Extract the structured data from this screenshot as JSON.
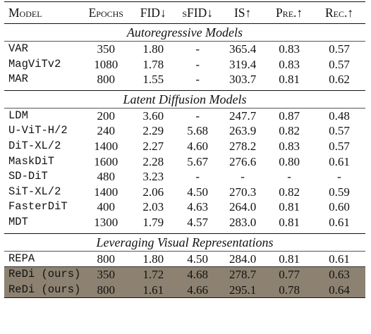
{
  "header": {
    "model": "Model",
    "epochs": "Epochs",
    "fid": "FID↓",
    "sfid": "sFID↓",
    "is": "IS↑",
    "pre": "Pre.↑",
    "rec": "Rec.↑"
  },
  "sections": [
    {
      "title": "Autoregressive Models",
      "rows": [
        {
          "model": "VAR",
          "epochs": "350",
          "fid": "1.80",
          "sfid": "-",
          "is": "365.4",
          "pre": "0.83",
          "rec": "0.57"
        },
        {
          "model": "MagViTv2",
          "epochs": "1080",
          "fid": "1.78",
          "sfid": "-",
          "is": "319.4",
          "pre": "0.83",
          "rec": "0.57"
        },
        {
          "model": "MAR",
          "epochs": "800",
          "fid": "1.55",
          "sfid": "-",
          "is": "303.7",
          "pre": "0.81",
          "rec": "0.62"
        }
      ]
    },
    {
      "title": "Latent Diffusion Models",
      "rows": [
        {
          "model": "LDM",
          "epochs": "200",
          "fid": "3.60",
          "sfid": "-",
          "is": "247.7",
          "pre": "0.87",
          "rec": "0.48"
        },
        {
          "model": "U-ViT-H/2",
          "epochs": "240",
          "fid": "2.29",
          "sfid": "5.68",
          "is": "263.9",
          "pre": "0.82",
          "rec": "0.57"
        },
        {
          "model": "DiT-XL/2",
          "epochs": "1400",
          "fid": "2.27",
          "sfid": "4.60",
          "is": "278.2",
          "pre": "0.83",
          "rec": "0.57"
        },
        {
          "model": "MaskDiT",
          "epochs": "1600",
          "fid": "2.28",
          "sfid": "5.67",
          "is": "276.6",
          "pre": "0.80",
          "rec": "0.61"
        },
        {
          "model": "SD-DiT",
          "epochs": "480",
          "fid": "3.23",
          "sfid": "-",
          "is": "-",
          "pre": "-",
          "rec": "-"
        },
        {
          "model": "SiT-XL/2",
          "epochs": "1400",
          "fid": "2.06",
          "sfid": "4.50",
          "is": "270.3",
          "pre": "0.82",
          "rec": "0.59"
        },
        {
          "model": "FasterDiT",
          "epochs": "400",
          "fid": "2.03",
          "sfid": "4.63",
          "is": "264.0",
          "pre": "0.81",
          "rec": "0.60"
        },
        {
          "model": "MDT",
          "epochs": "1300",
          "fid": "1.79",
          "sfid": "4.57",
          "is": "283.0",
          "pre": "0.81",
          "rec": "0.61"
        }
      ]
    },
    {
      "title": "Leveraging Visual Representations",
      "rows": [
        {
          "model": "REPA",
          "epochs": "800",
          "fid": "1.80",
          "sfid": "4.50",
          "is": "284.0",
          "pre": "0.81",
          "rec": "0.61"
        },
        {
          "model": "ReDi (ours)",
          "epochs": "350",
          "fid": "1.72",
          "sfid": "4.68",
          "is": "278.7",
          "pre": "0.77",
          "rec": "0.63",
          "highlight": true
        },
        {
          "model": "ReDi (ours)",
          "epochs": "800",
          "fid": "1.61",
          "sfid": "4.66",
          "is": "295.1",
          "pre": "0.78",
          "rec": "0.64",
          "highlight": true
        }
      ]
    }
  ]
}
